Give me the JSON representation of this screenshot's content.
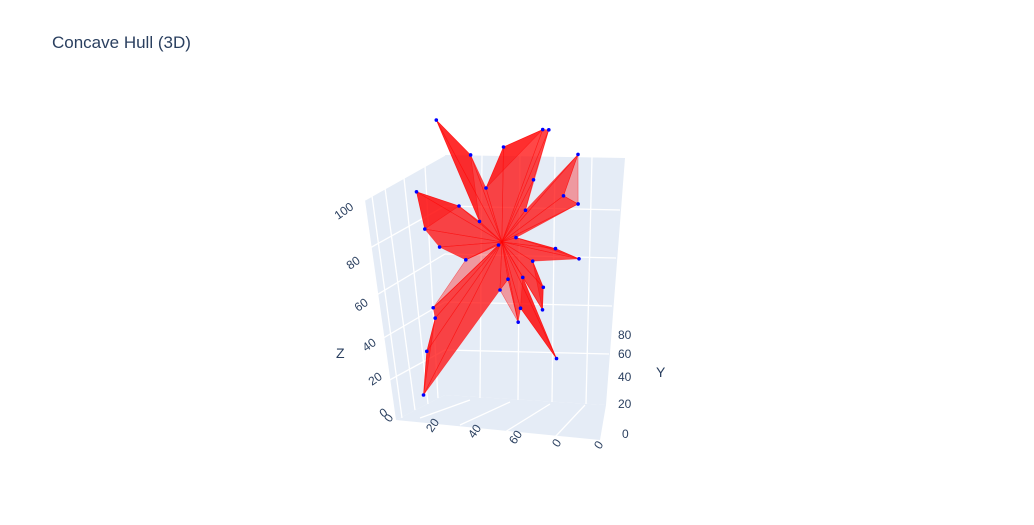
{
  "chart_data": {
    "type": "scatter3d-mesh",
    "title": "Concave Hull (3D)",
    "axes": {
      "x": {
        "title": "",
        "ticks": [
          "0",
          "20",
          "40",
          "60",
          "0",
          "0"
        ],
        "range": [
          0,
          100
        ]
      },
      "y": {
        "title": "Y",
        "ticks": [
          "0",
          "20",
          "40",
          "60",
          "80"
        ],
        "range": [
          0,
          100
        ]
      },
      "z": {
        "title": "Z",
        "ticks": [
          "0",
          "20",
          "40",
          "60",
          "80",
          "100"
        ],
        "range": [
          0,
          100
        ]
      }
    },
    "grid": true,
    "colors": {
      "mesh": "#ff0000",
      "points": "#0000ff",
      "scene_bg": "#e5ecf6",
      "grid": "#ffffff"
    },
    "points": [
      [
        5,
        20,
        12
      ],
      [
        8,
        28,
        26
      ],
      [
        14,
        38,
        36
      ],
      [
        18,
        70,
        33
      ],
      [
        22,
        74,
        54
      ],
      [
        12,
        60,
        63
      ],
      [
        10,
        75,
        73
      ],
      [
        22,
        85,
        97
      ],
      [
        38,
        72,
        88
      ],
      [
        55,
        70,
        92
      ],
      [
        78,
        85,
        96
      ],
      [
        82,
        90,
        95
      ],
      [
        95,
        75,
        90
      ],
      [
        93,
        62,
        75
      ],
      [
        90,
        40,
        60
      ],
      [
        75,
        20,
        28
      ],
      [
        70,
        35,
        42
      ],
      [
        60,
        45,
        40
      ],
      [
        55,
        55,
        48
      ],
      [
        50,
        55,
        60
      ],
      [
        40,
        55,
        68
      ],
      [
        30,
        60,
        72
      ],
      [
        32,
        50,
        55
      ],
      [
        45,
        65,
        78
      ],
      [
        65,
        60,
        72
      ],
      [
        70,
        65,
        82
      ],
      [
        85,
        60,
        78
      ],
      [
        60,
        60,
        62
      ],
      [
        72,
        45,
        48
      ],
      [
        68,
        55,
        55
      ],
      [
        62,
        50,
        50
      ],
      [
        80,
        55,
        60
      ],
      [
        50,
        50,
        45
      ],
      [
        58,
        40,
        36
      ]
    ]
  }
}
